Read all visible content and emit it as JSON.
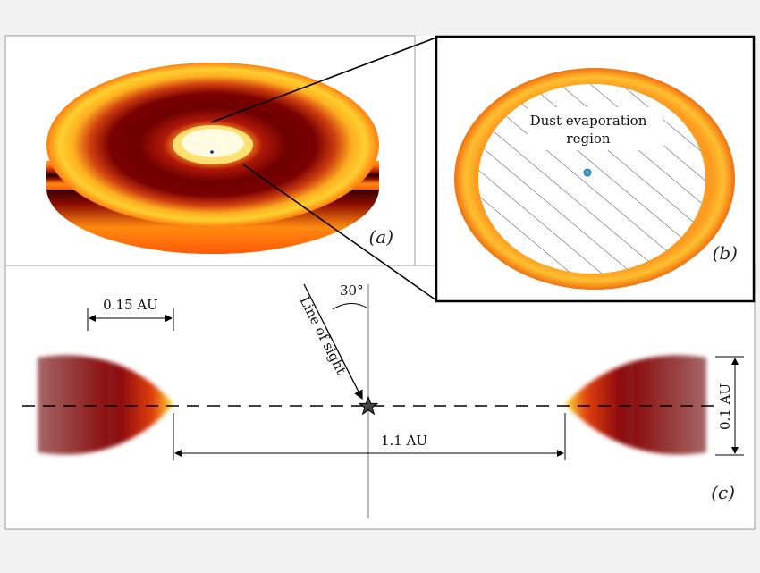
{
  "panel_a": {
    "label": "(a)"
  },
  "panel_b": {
    "label": "(b)",
    "region_line1": "Dust evaporation",
    "region_line2": "region"
  },
  "panel_c": {
    "label": "(c)",
    "width_label": "0.15 AU",
    "angle_label": "30°",
    "sight_label": "Line of sight",
    "distance_label": "1.1 AU",
    "height_label": "0.1 AU"
  },
  "colors": {
    "dark_red": "#7a0000",
    "red": "#c0200a",
    "orange": "#f07010",
    "yellow": "#ffe030",
    "star_center": "#3aa6d8"
  }
}
